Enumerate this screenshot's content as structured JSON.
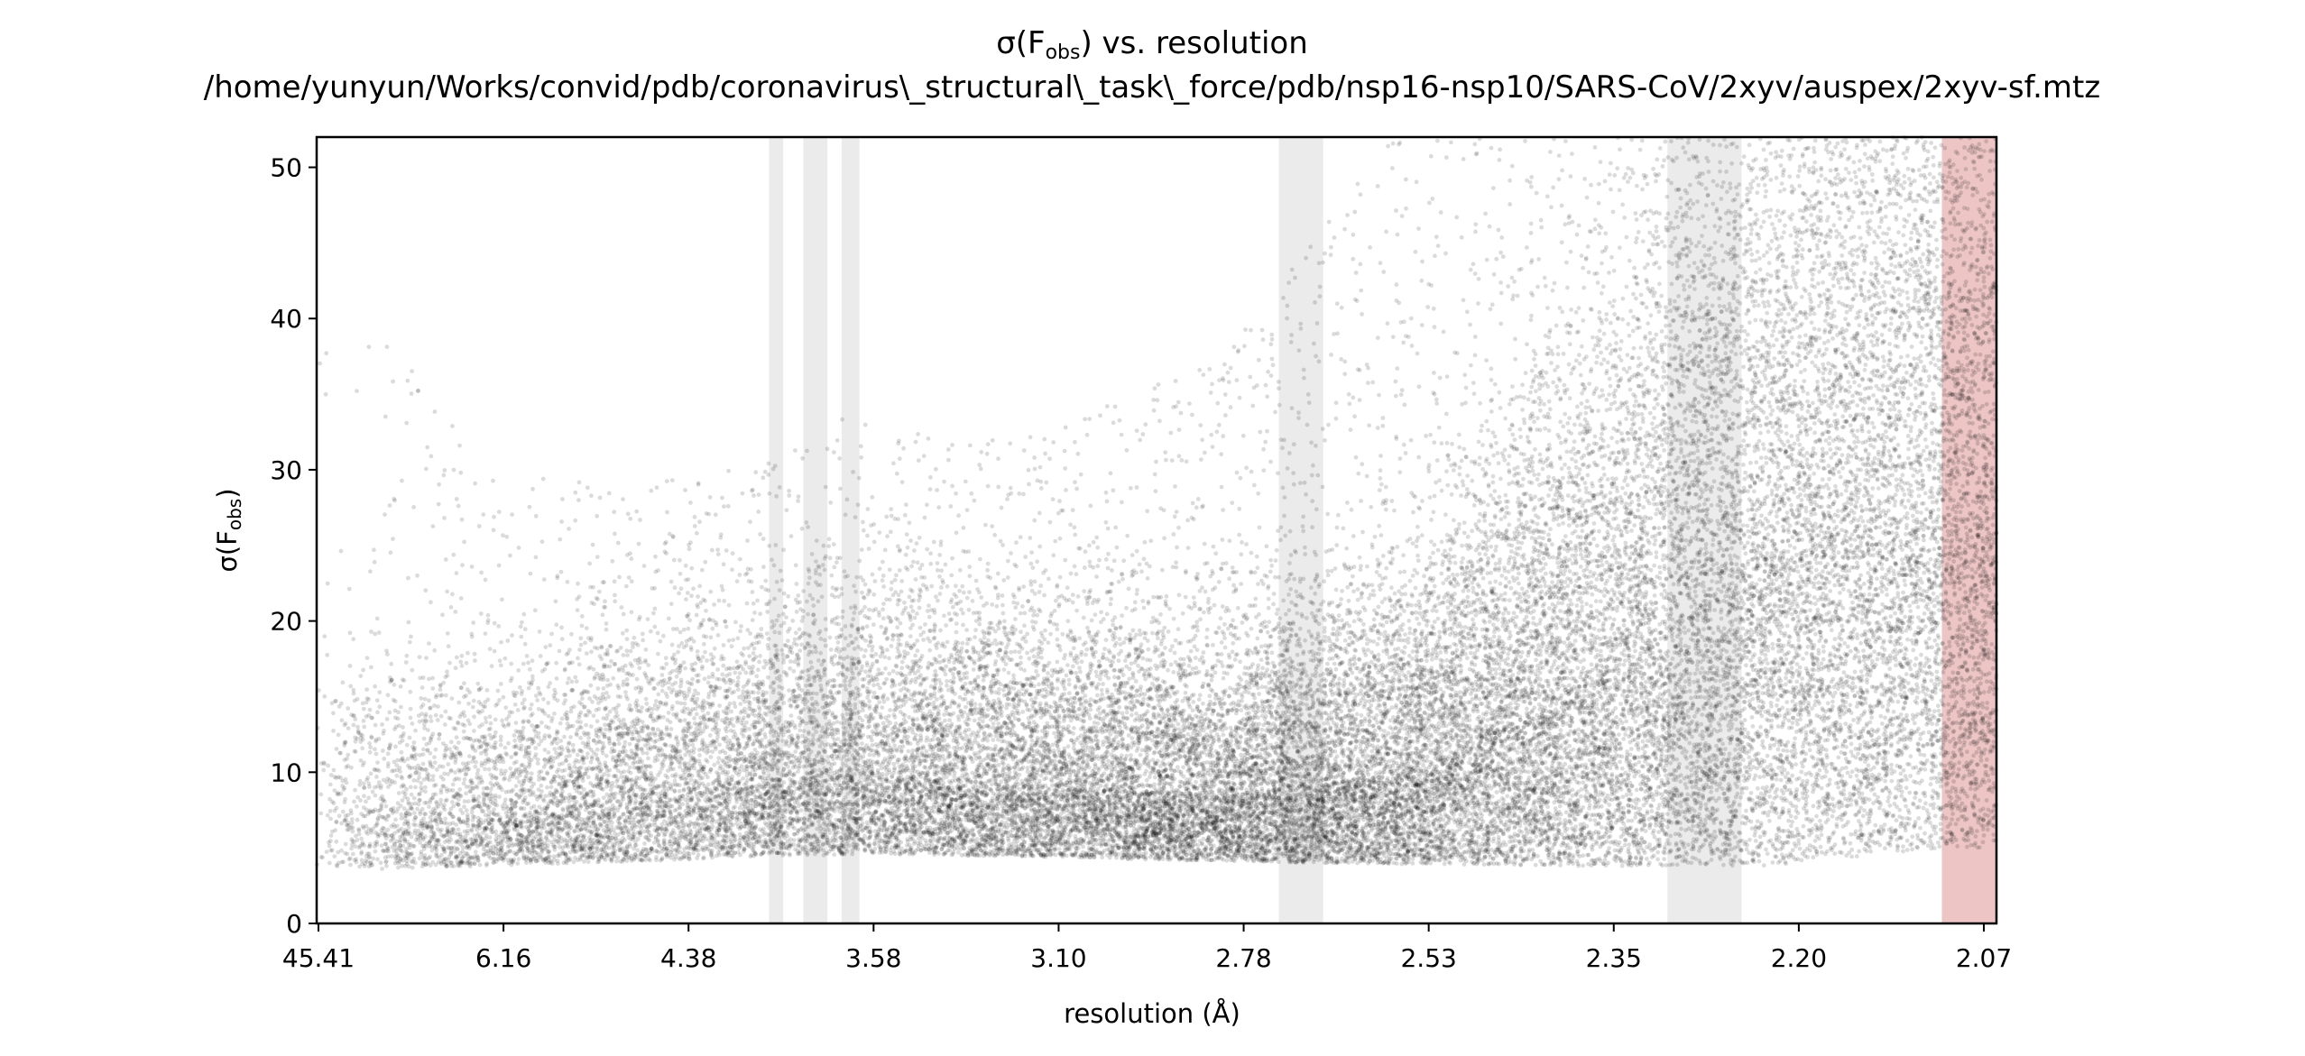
{
  "chart_data": {
    "type": "scatter",
    "title": "σ(Fₒₑₛ) vs. resolution",
    "title_parts": {
      "symbol": "σ(F",
      "subscript": "obs",
      "rest": ") vs. resolution"
    },
    "subtitle": "/home/yunyun/Works/convid/pdb/coronavirus\\_structural\\_task\\_force/pdb/nsp16-nsp10/SARS-CoV/2xyv/auspex/2xyv-sf.mtz",
    "xlabel": "resolution (Å)",
    "ylabel_parts": {
      "symbol": "σ(F",
      "subscript": "obs",
      "rest": ")"
    },
    "x_scale": "reciprocal-squared (1/d²)",
    "x_tick_labels": [
      "45.41",
      "6.16",
      "4.38",
      "3.58",
      "3.10",
      "2.78",
      "2.53",
      "2.35",
      "2.20",
      "2.07"
    ],
    "x_range": [
      45.41,
      2.045
    ],
    "y_ticks": [
      0,
      10,
      20,
      30,
      40,
      50
    ],
    "ylim": [
      0,
      52
    ],
    "grid": false,
    "legend": "none",
    "point_color": "#000000",
    "ice_ring_bands_resolution": [
      [
        3.93,
        3.87
      ],
      [
        3.79,
        3.7
      ],
      [
        3.65,
        3.59
      ],
      [
        2.7,
        2.64
      ],
      [
        2.28,
        2.22
      ]
    ],
    "high_resolution_band": [
      2.079,
      2.045
    ],
    "band_color": "#d3d3d3",
    "high_res_band_color": "#e4a6a6",
    "density_profile": {
      "resolution": [
        45.41,
        6.16,
        4.38,
        3.58,
        3.1,
        2.78,
        2.53,
        2.35,
        2.2,
        2.08
      ],
      "sigma_lower": [
        3.5,
        3.8,
        4.2,
        4.6,
        4.4,
        4.1,
        3.9,
        3.8,
        3.8,
        5.0
      ],
      "sigma_median": [
        8,
        7,
        9,
        10,
        9,
        8.5,
        10,
        16,
        24,
        27
      ],
      "sigma_upper": [
        30,
        20,
        20,
        22,
        22,
        25,
        35,
        38,
        40,
        52
      ]
    },
    "approximate_point_count": 40000
  }
}
